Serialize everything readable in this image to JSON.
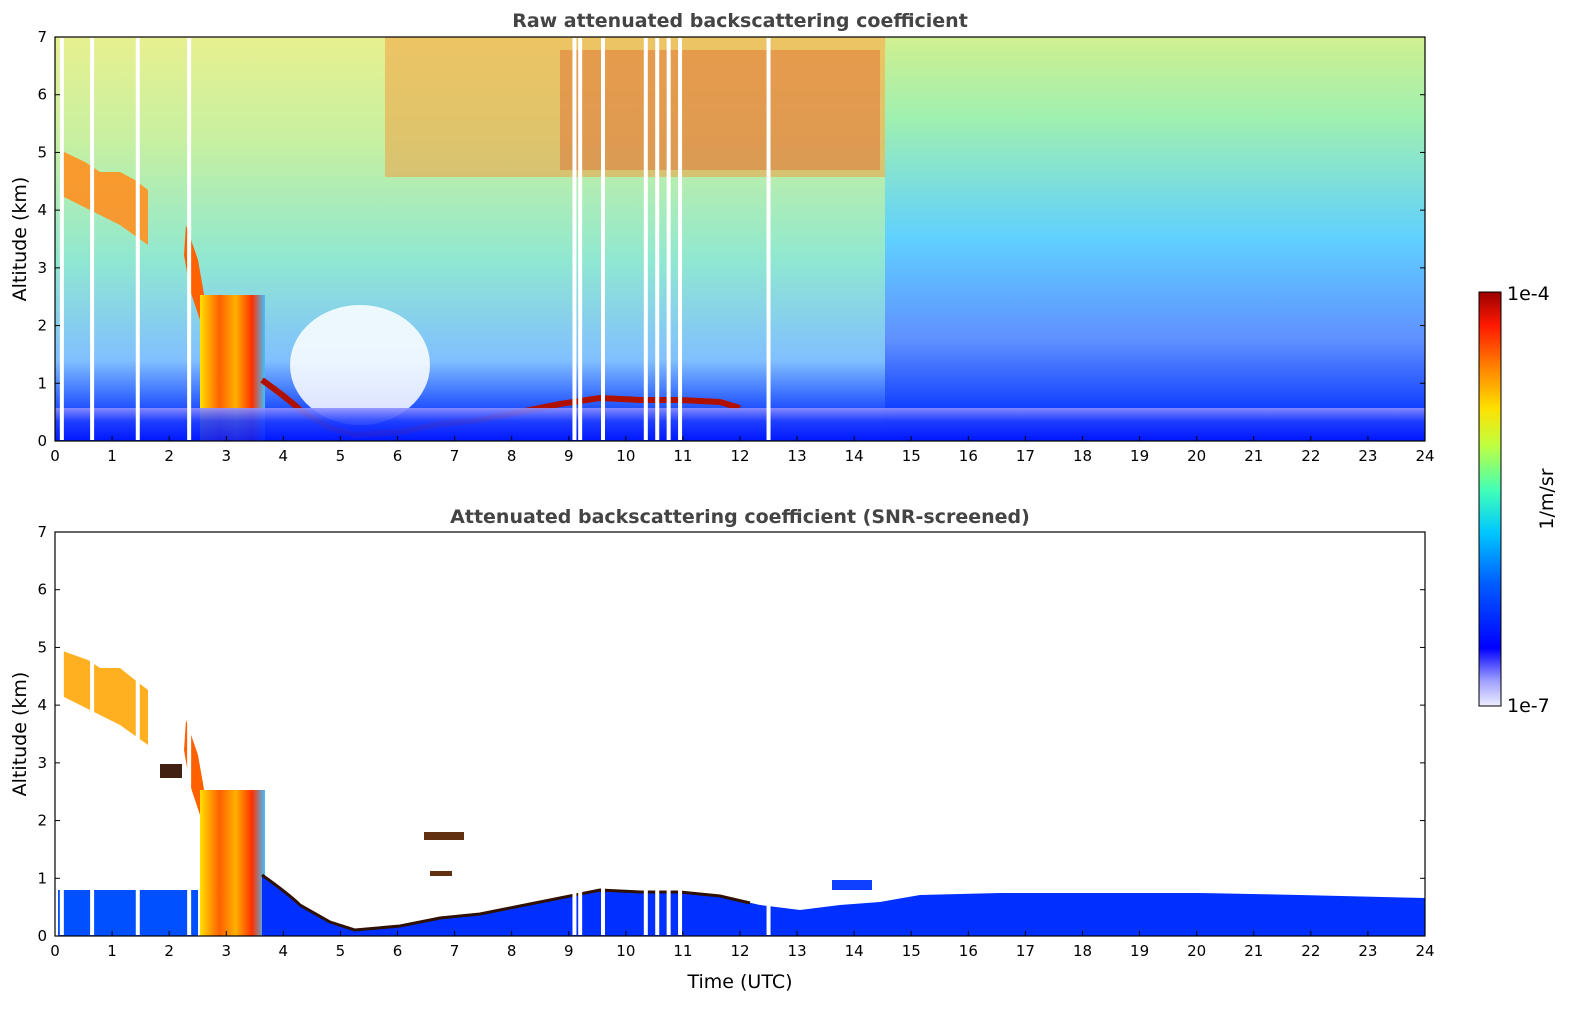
{
  "chart_data": [
    {
      "type": "heatmap",
      "title": "Raw attenuated backscattering coefficient",
      "xlabel": "",
      "ylabel": "Altitude (km)",
      "xlim": [
        0,
        24
      ],
      "ylim": [
        0,
        7
      ],
      "x_ticks": [
        "0",
        "1",
        "2",
        "3",
        "4",
        "5",
        "6",
        "7",
        "8",
        "9",
        "10",
        "11",
        "12",
        "13",
        "14",
        "15",
        "16",
        "17",
        "18",
        "19",
        "20",
        "21",
        "22",
        "23",
        "24"
      ],
      "y_ticks": [
        "0",
        "1",
        "2",
        "3",
        "4",
        "5",
        "6",
        "7"
      ],
      "grid": false,
      "data_gaps_utc": [
        0.12,
        0.65,
        1.45,
        2.35,
        9.1,
        9.2,
        9.6,
        10.35,
        10.55,
        10.75,
        10.95,
        12.5
      ],
      "features": [
        {
          "name": "cirrus layer",
          "start_utc": 0.1,
          "end_utc": 1.6,
          "base_km": 3.8,
          "top_km": 4.8
        },
        {
          "name": "descending cloud",
          "start_utc": 2.3,
          "end_utc": 2.7,
          "base_km": 2.2,
          "top_km": 3.6
        },
        {
          "name": "mid-level cloud",
          "start_utc": 2.6,
          "end_utc": 3.9,
          "base_km": 0.1,
          "top_km": 2.5
        },
        {
          "name": "boundary layer top",
          "points": [
            [
              3.9,
              1.0
            ],
            [
              4.5,
              0.5
            ],
            [
              5.0,
              0.2
            ],
            [
              6.0,
              0.25
            ],
            [
              7.0,
              0.3
            ],
            [
              8.0,
              0.45
            ],
            [
              9.0,
              0.65
            ],
            [
              10.0,
              0.7
            ],
            [
              11.0,
              0.65
            ],
            [
              12.0,
              0.6
            ]
          ]
        }
      ]
    },
    {
      "type": "heatmap",
      "title": "Attenuated backscattering coefficient (SNR-screened)",
      "xlabel": "Time (UTC)",
      "ylabel": "Altitude (km)",
      "xlim": [
        0,
        24
      ],
      "ylim": [
        0,
        7
      ],
      "x_ticks": [
        "0",
        "1",
        "2",
        "3",
        "4",
        "5",
        "6",
        "7",
        "8",
        "9",
        "10",
        "11",
        "12",
        "13",
        "14",
        "15",
        "16",
        "17",
        "18",
        "19",
        "20",
        "21",
        "22",
        "23",
        "24"
      ],
      "y_ticks": [
        "0",
        "1",
        "2",
        "3",
        "4",
        "5",
        "6",
        "7"
      ],
      "grid": false,
      "screened_layer_top_km": [
        {
          "start_utc": 0.0,
          "end_utc": 2.5,
          "top_km": 0.8
        },
        {
          "start_utc": 14.5,
          "end_utc": 24.0,
          "top_km": 0.7
        }
      ]
    }
  ],
  "colorbar": {
    "label": "1/m/sr",
    "max_label": "1e-4",
    "min_label": "1e-7",
    "scale": "log",
    "range": [
      1e-07,
      0.0001
    ],
    "colormap": [
      "#e8e8f8",
      "#8080ff",
      "#0000ff",
      "#0070ff",
      "#00c8ff",
      "#40ffb8",
      "#c0ff40",
      "#ffe000",
      "#ff8000",
      "#ff2000",
      "#a00000"
    ]
  }
}
